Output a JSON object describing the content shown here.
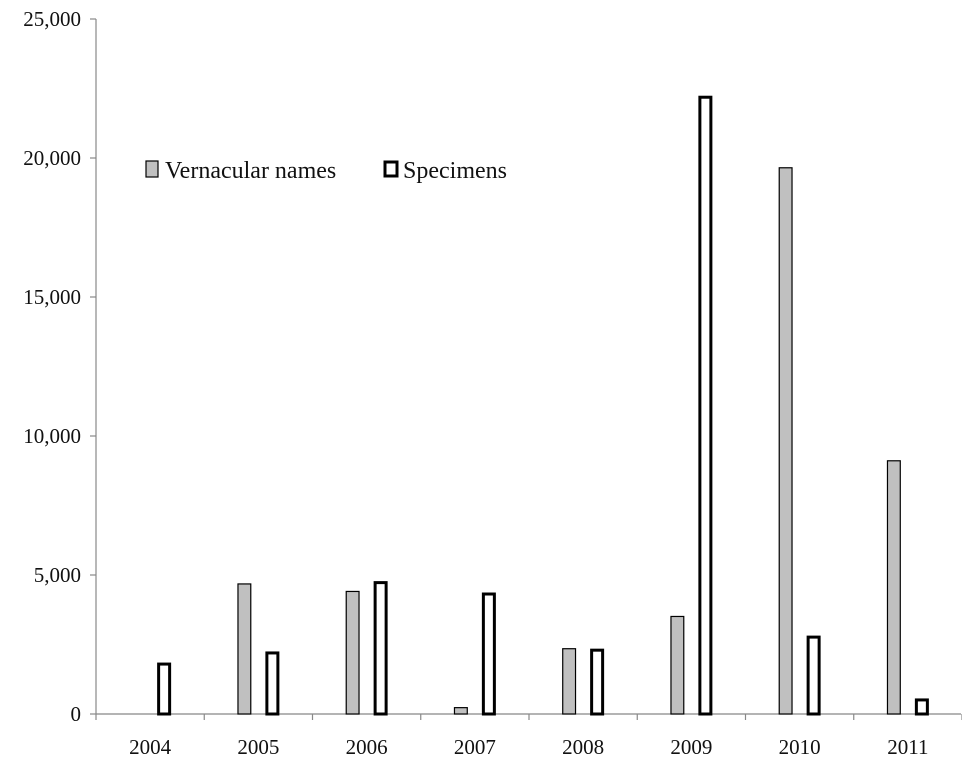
{
  "chart_data": {
    "type": "bar",
    "title": "",
    "xlabel": "",
    "ylabel": "",
    "categories": [
      "2004",
      "2005",
      "2006",
      "2007",
      "2008",
      "2009",
      "2010",
      "2011"
    ],
    "series": [
      {
        "name": "Vernacular names",
        "values": [
          0,
          4700,
          4430,
          250,
          2370,
          3530,
          19670,
          9130
        ],
        "color": "#c0c0c0",
        "border": "#000000"
      },
      {
        "name": "Specimens",
        "values": [
          1850,
          2250,
          4780,
          4370,
          2350,
          22240,
          2820,
          560
        ],
        "color": "#ffffff",
        "border": "#000000"
      }
    ],
    "ylim": [
      0,
      25000
    ],
    "yticks": [
      0,
      5000,
      10000,
      15000,
      20000,
      25000
    ],
    "ytick_labels": [
      "0",
      "5,000",
      "10,000",
      "15,000",
      "20,000",
      "25,000"
    ],
    "grid": false,
    "legend_position": "upper-left"
  }
}
